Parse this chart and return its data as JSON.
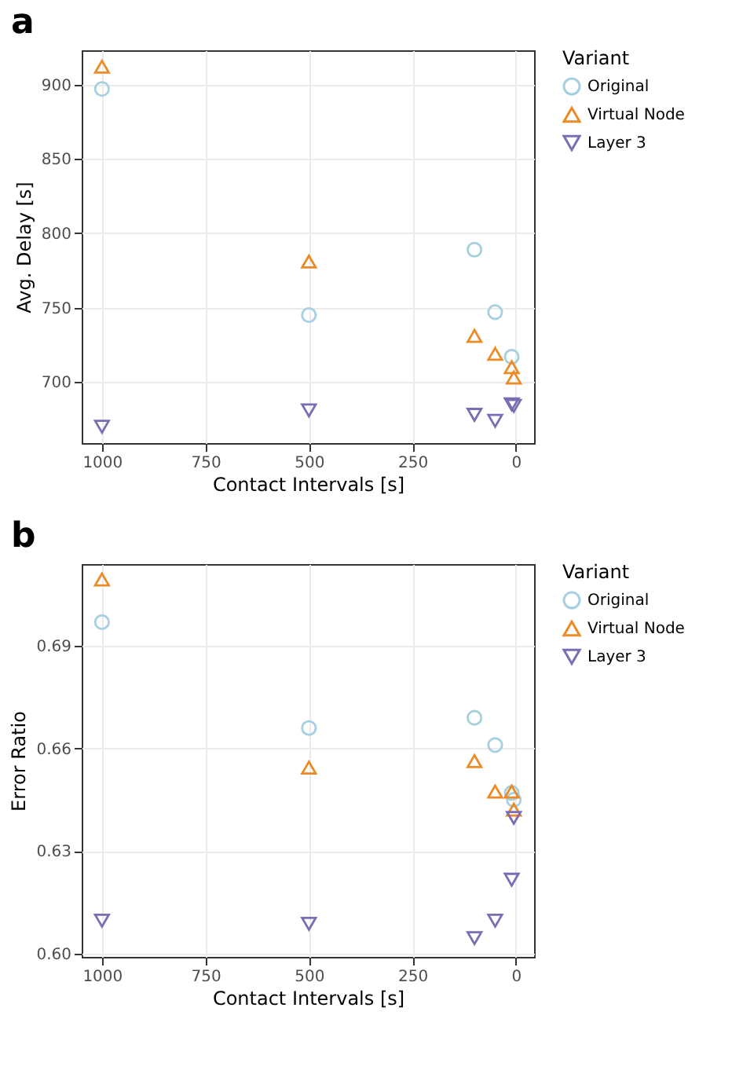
{
  "chart_data": [
    {
      "type": "scatter",
      "title": "a",
      "xlabel": "Contact Intervals [s]",
      "ylabel": "Avg. Delay [s]",
      "legend_title": "Variant",
      "legend": "right",
      "grid": true,
      "x": [
        1000,
        500,
        100,
        50,
        10,
        5
      ],
      "xlim": [
        1049,
        -44
      ],
      "xticks": [
        1000,
        750,
        500,
        250,
        0
      ],
      "ylim": [
        659,
        923
      ],
      "yticks": [
        700,
        750,
        800,
        850,
        900
      ],
      "series": [
        {
          "name": "Original",
          "color": "#a6cfe0",
          "marker": "circle",
          "values": [
            897,
            745,
            789,
            747,
            717,
            null
          ]
        },
        {
          "name": "Virtual Node",
          "color": "#ec8a26",
          "marker": "triangle",
          "values": [
            912,
            781,
            731,
            719,
            710,
            703
          ]
        },
        {
          "name": "Layer 3",
          "color": "#7b6db3",
          "marker": "triangle-down",
          "values": [
            670,
            681,
            678,
            674,
            685,
            684
          ]
        }
      ]
    },
    {
      "type": "scatter",
      "title": "b",
      "xlabel": "Contact Intervals [s]",
      "ylabel": "Error Ratio",
      "legend_title": "Variant",
      "legend": "right",
      "grid": true,
      "x": [
        1000,
        500,
        100,
        50,
        10,
        5
      ],
      "xlim": [
        1049,
        -44
      ],
      "xticks": [
        1000,
        750,
        500,
        250,
        0
      ],
      "ylim": [
        0.599,
        0.714
      ],
      "yticks": [
        {
          "value": 0.6,
          "label": "0.60"
        },
        0.63,
        0.66,
        0.69
      ],
      "series": [
        {
          "name": "Original",
          "color": "#a6cfe0",
          "marker": "circle",
          "values": [
            0.697,
            0.666,
            0.669,
            0.661,
            0.647,
            0.645
          ]
        },
        {
          "name": "Virtual Node",
          "color": "#ec8a26",
          "marker": "triangle",
          "values": [
            0.7095,
            0.6544,
            0.6563,
            0.6474,
            0.6474,
            0.6421
          ]
        },
        {
          "name": "Layer 3",
          "color": "#7b6db3",
          "marker": "triangle-down",
          "values": [
            0.6096,
            0.6087,
            0.6045,
            0.6096,
            0.6216,
            0.6397
          ]
        }
      ]
    }
  ]
}
